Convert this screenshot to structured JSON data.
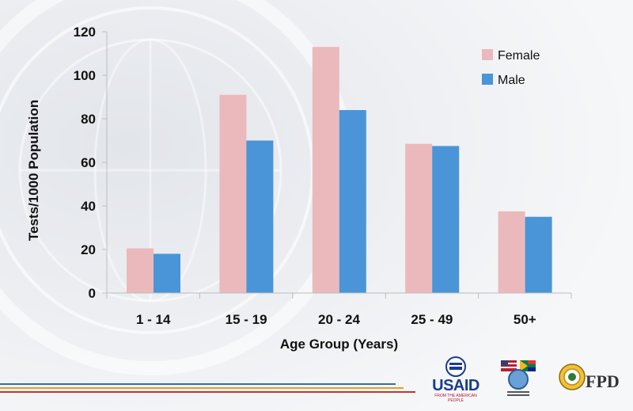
{
  "chart_data": {
    "type": "bar",
    "title": "",
    "xlabel": "Age Group (Years)",
    "ylabel": "Tests/1000 Population",
    "categories": [
      "1 - 14",
      "15 - 19",
      "20 - 24",
      "25 - 49",
      "50+"
    ],
    "series": [
      {
        "name": "Female",
        "values": [
          20.5,
          91,
          113,
          68.5,
          37.5
        ]
      },
      {
        "name": "Male",
        "values": [
          18,
          70,
          84,
          67.5,
          35
        ]
      }
    ],
    "ylim": [
      0,
      120
    ],
    "yticks": [
      0,
      20,
      40,
      60,
      80,
      100,
      120
    ],
    "grid": false,
    "legend_position": "top-right",
    "colors": {
      "Female": "#ebb9bc",
      "Male": "#4a95d8"
    }
  },
  "logos": {
    "usaid": {
      "text": "USAID",
      "subtext": "FROM THE AMERICAN PEOPLE"
    },
    "fpd": {
      "text": "FPD"
    }
  }
}
